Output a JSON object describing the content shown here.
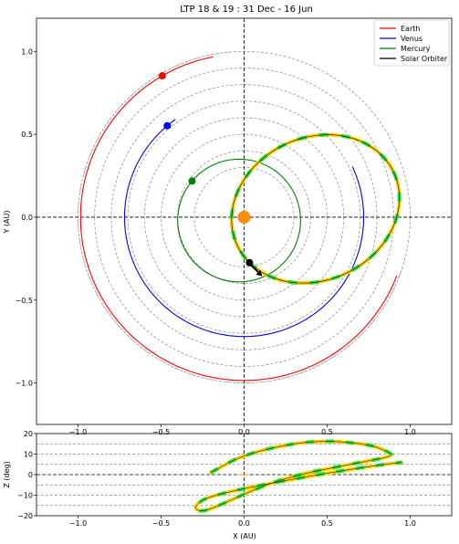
{
  "chart_data": [
    {
      "type": "scatter",
      "title": "LTP 18 & 19 : 31 Dec - 16 Jun",
      "xlabel": "",
      "ylabel": "Y (AU)",
      "xlim": [
        -1.25,
        1.25
      ],
      "ylim": [
        -1.25,
        1.2
      ],
      "x_ticks": [
        "−1.0",
        "−0.5",
        "0.0",
        "0.5",
        "1.0"
      ],
      "y_ticks": [
        "1.0",
        "0.5",
        "0.0",
        "−0.5",
        "−1.0"
      ],
      "grid": false,
      "legend_position": "top-right",
      "reference_circles_radius_au": [
        0.3,
        0.4,
        0.5,
        0.6,
        0.7,
        0.8,
        0.9,
        1.0
      ],
      "sun": {
        "x": 0,
        "y": 0,
        "color": "#ff8c00"
      },
      "series": [
        {
          "name": "Earth",
          "color": "#ff0000",
          "radius": 0.985,
          "arc_deg": [
            101,
            340
          ],
          "marker_deg": 120
        },
        {
          "name": "Venus",
          "color": "#0000ff",
          "radius": 0.72,
          "arc_deg": [
            125,
            385
          ],
          "marker_deg": 130
        },
        {
          "name": "Mercury",
          "color": "#008000",
          "center": [
            -0.03,
            -0.02
          ],
          "radius": 0.37,
          "arc_deg": [
            0,
            360
          ],
          "marker_deg": 140
        },
        {
          "name": "Solar Orbiter",
          "color": "#000000",
          "center": [
            0.43,
            0.05
          ],
          "radius_x": 0.52,
          "radius_y": 0.43,
          "tilt_deg": 25,
          "arc_deg": [
            197,
            563
          ],
          "marker_deg": 197
        }
      ],
      "highlight_colors": [
        "#ffd500",
        "#33dd33"
      ]
    },
    {
      "type": "line",
      "title": "",
      "xlabel": "X (AU)",
      "ylabel": "Z (deg)",
      "xlim": [
        -1.25,
        1.25
      ],
      "ylim": [
        -20,
        20
      ],
      "x_ticks": [
        "−1.0",
        "−0.5",
        "0.0",
        "0.5",
        "1.0"
      ],
      "y_ticks": [
        "20",
        "10",
        "0",
        "−10",
        "−20"
      ],
      "dashed_lines_deg": [
        15,
        10,
        5,
        -5,
        -10,
        -15
      ],
      "series": [
        {
          "name": "Solar Orbiter",
          "points": [
            [
              -0.2,
              1
            ],
            [
              0,
              10
            ],
            [
              0.4,
              17
            ],
            [
              0.75,
              15
            ],
            [
              0.87,
              11
            ],
            [
              0.9,
              9
            ],
            [
              0.7,
              6
            ],
            [
              0.2,
              -2
            ],
            [
              -0.2,
              -17
            ],
            [
              -0.28,
              -18
            ],
            [
              -0.3,
              -15
            ],
            [
              -0.2,
              -10
            ],
            [
              0.3,
              -2
            ],
            [
              0.75,
              4
            ],
            [
              0.95,
              6
            ]
          ]
        }
      ]
    }
  ]
}
